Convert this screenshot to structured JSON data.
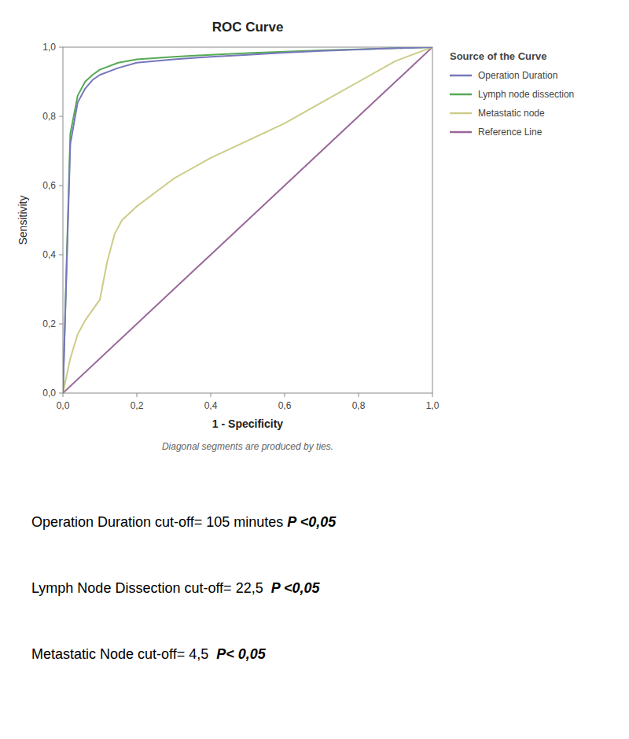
{
  "chart_data": {
    "type": "line",
    "title": "ROC Curve",
    "x_label": "1 - Specificity",
    "y_label": "Sensitivity",
    "legend_title": "Source of the Curve",
    "legend": "right",
    "grid": false,
    "footnote": "Diagonal segments are produced by ties.",
    "annotations": [
      {
        "text": "Operation Duration cut-off= 105 minutes ",
        "emphasis": "P <0,05"
      },
      {
        "text": "Lymph Node Dissection cut-off= 22,5  ",
        "emphasis": "P <0,05"
      },
      {
        "text": "Metastatic Node cut-off= 4,5  ",
        "emphasis": "P< 0,05"
      }
    ],
    "xlim": [
      0.0,
      1.0
    ],
    "ylim": [
      0.0,
      1.0
    ],
    "xticks": [
      {
        "value": 0.0,
        "label": "0,0"
      },
      {
        "value": 0.2,
        "label": "0,2"
      },
      {
        "value": 0.4,
        "label": "0,4"
      },
      {
        "value": 0.6,
        "label": "0,6"
      },
      {
        "value": 0.8,
        "label": "0,8"
      },
      {
        "value": 1.0,
        "label": "1,0"
      }
    ],
    "yticks": [
      {
        "value": 0.0,
        "label": "0,0"
      },
      {
        "value": 0.2,
        "label": "0,2"
      },
      {
        "value": 0.4,
        "label": "0,4"
      },
      {
        "value": 0.6,
        "label": "0,6"
      },
      {
        "value": 0.8,
        "label": "0,8"
      },
      {
        "value": 1.0,
        "label": "1,0"
      }
    ],
    "series": [
      {
        "name": "Operation Duration",
        "color": "#7777bb",
        "x": [
          0.0,
          0.02,
          0.04,
          0.06,
          0.08,
          0.1,
          0.15,
          0.2,
          0.3,
          0.4,
          0.5,
          0.6,
          0.7,
          0.8,
          0.9,
          1.0
        ],
        "values": [
          0.0,
          0.72,
          0.84,
          0.88,
          0.905,
          0.92,
          0.94,
          0.955,
          0.965,
          0.972,
          0.978,
          0.984,
          0.989,
          0.993,
          0.997,
          1.0
        ]
      },
      {
        "name": "Lymph node dissection",
        "color": "#55aa55",
        "x": [
          0.0,
          0.02,
          0.04,
          0.06,
          0.08,
          0.1,
          0.15,
          0.2,
          0.3,
          0.4,
          0.5,
          0.6,
          0.7,
          0.8,
          0.9,
          1.0
        ],
        "values": [
          0.0,
          0.75,
          0.86,
          0.9,
          0.92,
          0.935,
          0.955,
          0.965,
          0.972,
          0.978,
          0.983,
          0.987,
          0.991,
          0.994,
          0.997,
          1.0
        ]
      },
      {
        "name": "Metastatic node",
        "color": "#cccc88",
        "x": [
          0.0,
          0.02,
          0.04,
          0.06,
          0.08,
          0.1,
          0.12,
          0.14,
          0.16,
          0.18,
          0.2,
          0.25,
          0.3,
          0.35,
          0.4,
          0.5,
          0.6,
          0.7,
          0.8,
          0.9,
          1.0
        ],
        "values": [
          0.0,
          0.1,
          0.17,
          0.21,
          0.24,
          0.27,
          0.38,
          0.46,
          0.5,
          0.52,
          0.54,
          0.58,
          0.62,
          0.65,
          0.68,
          0.73,
          0.78,
          0.84,
          0.9,
          0.96,
          1.0
        ]
      },
      {
        "name": "Reference Line",
        "color": "#996699",
        "x": [
          0.0,
          1.0
        ],
        "values": [
          0.0,
          1.0
        ]
      }
    ]
  }
}
